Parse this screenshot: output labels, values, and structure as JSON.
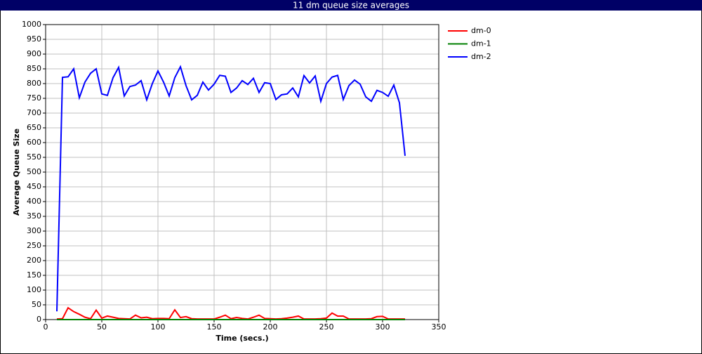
{
  "chart_data": {
    "type": "line",
    "title": "11 dm queue size averages",
    "x_label": "Time (secs.)",
    "y_label": "Average Queue Size",
    "x": [
      10,
      15,
      20,
      25,
      30,
      35,
      40,
      45,
      50,
      55,
      60,
      65,
      70,
      75,
      80,
      85,
      90,
      95,
      100,
      105,
      110,
      115,
      120,
      125,
      130,
      135,
      140,
      145,
      150,
      155,
      160,
      165,
      170,
      175,
      180,
      185,
      190,
      195,
      200,
      205,
      210,
      215,
      220,
      225,
      230,
      235,
      240,
      245,
      250,
      255,
      260,
      265,
      270,
      275,
      280,
      285,
      290,
      295,
      300,
      305,
      310,
      315,
      320
    ],
    "series": [
      {
        "name": "dm-0",
        "color": "#ff0000",
        "values": [
          2,
          3,
          40,
          27,
          18,
          8,
          3,
          32,
          5,
          12,
          8,
          4,
          3,
          2,
          15,
          6,
          8,
          3,
          4,
          4,
          3,
          33,
          7,
          10,
          3,
          2,
          2,
          2,
          2,
          8,
          15,
          3,
          7,
          4,
          2,
          8,
          15,
          4,
          3,
          2,
          3,
          5,
          8,
          12,
          2,
          2,
          2,
          3,
          5,
          22,
          12,
          12,
          2,
          2,
          2,
          2,
          3,
          10,
          11,
          2,
          2,
          2,
          2
        ]
      },
      {
        "name": "dm-1",
        "color": "#008000",
        "values": [
          0,
          0,
          0,
          0,
          0,
          0,
          0,
          0,
          0,
          0,
          0,
          0,
          0,
          0,
          0,
          0,
          0,
          0,
          0,
          0,
          0,
          0,
          0,
          0,
          0,
          0,
          0,
          0,
          0,
          0,
          0,
          0,
          0,
          0,
          0,
          0,
          0,
          0,
          0,
          0,
          0,
          0,
          0,
          0,
          0,
          0,
          0,
          0,
          0,
          0,
          0,
          0,
          0,
          0,
          0,
          0,
          0,
          0,
          0,
          0,
          0,
          0,
          0
        ]
      },
      {
        "name": "dm-2",
        "color": "#0000ff",
        "values": [
          28,
          821,
          823,
          850,
          752,
          805,
          835,
          850,
          765,
          760,
          820,
          855,
          758,
          790,
          795,
          810,
          745,
          800,
          843,
          805,
          758,
          820,
          857,
          793,
          745,
          760,
          805,
          778,
          798,
          828,
          825,
          770,
          785,
          810,
          797,
          818,
          770,
          803,
          800,
          746,
          762,
          765,
          785,
          755,
          827,
          802,
          826,
          740,
          800,
          822,
          828,
          746,
          793,
          812,
          798,
          755,
          740,
          777,
          770,
          757,
          795,
          735,
          555
        ]
      }
    ],
    "xlim": [
      0,
      350
    ],
    "xticks": [
      0,
      50,
      100,
      150,
      200,
      250,
      300,
      350
    ],
    "ylim": [
      0,
      1000
    ],
    "yticks": [
      0,
      50,
      100,
      150,
      200,
      250,
      300,
      350,
      400,
      450,
      500,
      550,
      600,
      650,
      700,
      750,
      800,
      850,
      900,
      950,
      1000
    ],
    "grid": true,
    "legend": "right"
  }
}
